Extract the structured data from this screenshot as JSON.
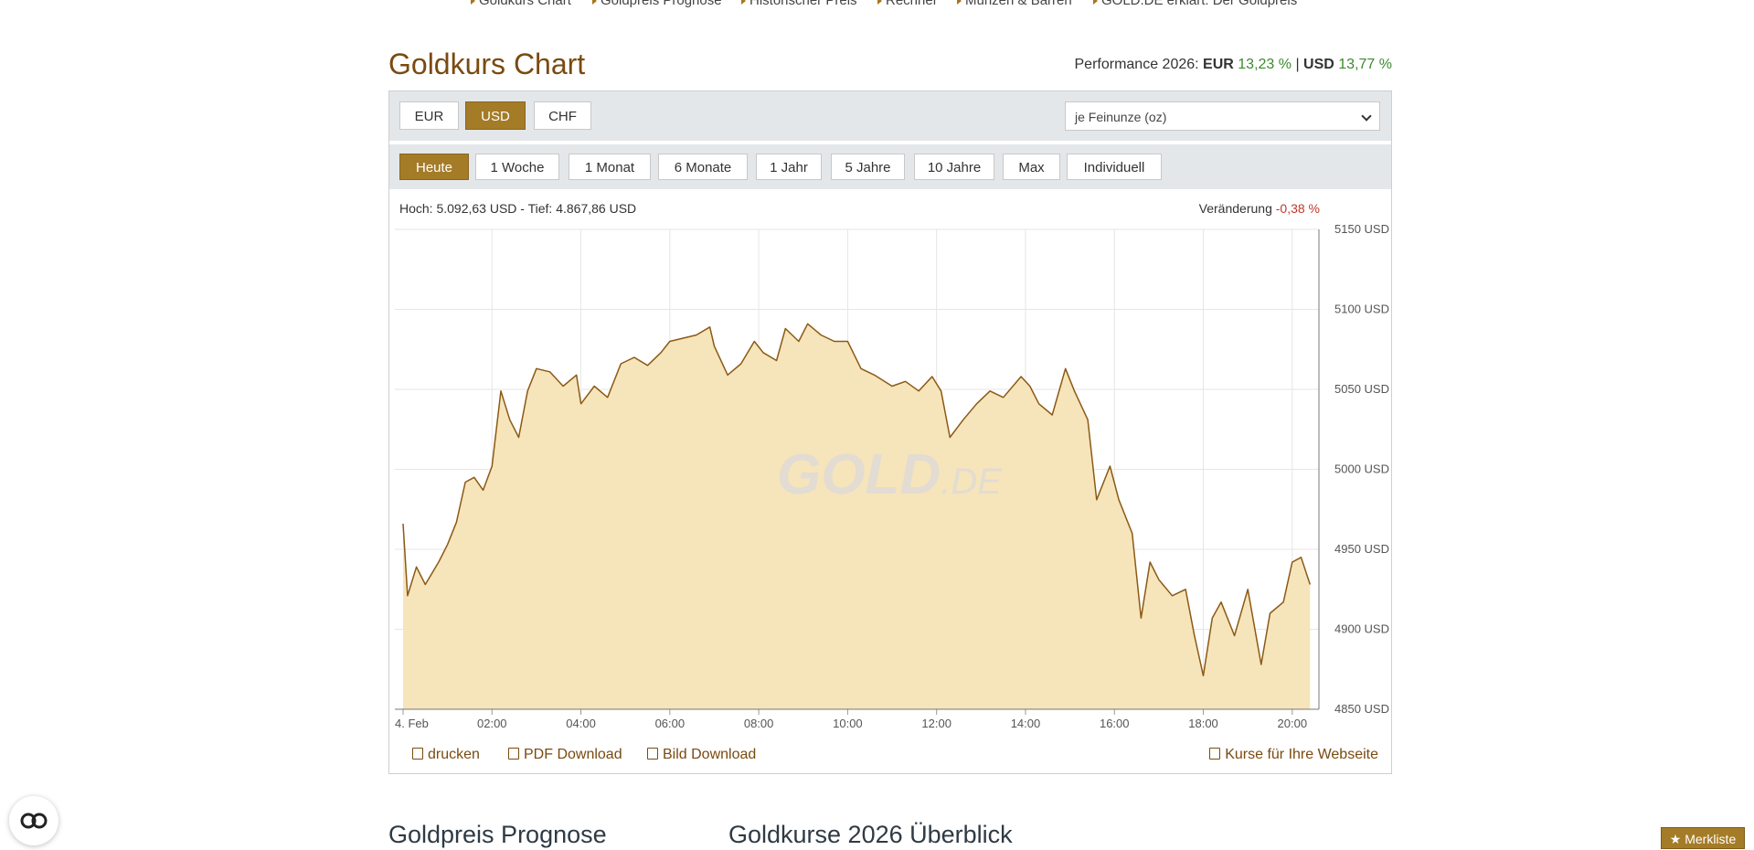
{
  "nav": [
    "Goldkurs Chart",
    "Goldpreis Prognose",
    "Historischer Preis",
    "Rechner",
    "Münzen & Barren",
    "GOLD.DE erklärt: Der Goldpreis"
  ],
  "title": "Goldkurs Chart",
  "performance": {
    "label": "Performance 2026:",
    "items": [
      {
        "currency": "EUR",
        "value": "13,23 %"
      },
      {
        "currency": "USD",
        "value": "13,77 %"
      }
    ],
    "separator": "|"
  },
  "currencies": [
    "EUR",
    "USD",
    "CHF"
  ],
  "unit_select": "je Feinunze (oz)",
  "periods": [
    "Heute",
    "1 Woche",
    "1 Monat",
    "6 Monate",
    "1 Jahr",
    "5 Jahre",
    "10 Jahre",
    "Max",
    "Individuell"
  ],
  "range_text": "Hoch: 5.092,63 USD - Tief: 4.867,86 USD",
  "change": {
    "label": "Veränderung",
    "value": "-0,38 %"
  },
  "watermark": [
    "GOLD",
    ".DE"
  ],
  "chart_data": {
    "type": "area",
    "color": "#8b5a14",
    "fill": "#f6e4bb",
    "grid": true,
    "xlim": [
      0,
      20.6
    ],
    "xticks": [
      {
        "value": 0,
        "label": "4. Feb"
      },
      {
        "value": 2,
        "label": "02:00"
      },
      {
        "value": 4,
        "label": "04:00"
      },
      {
        "value": 6,
        "label": "06:00"
      },
      {
        "value": 8,
        "label": "08:00"
      },
      {
        "value": 10,
        "label": "10:00"
      },
      {
        "value": 12,
        "label": "12:00"
      },
      {
        "value": 14,
        "label": "14:00"
      },
      {
        "value": 16,
        "label": "16:00"
      },
      {
        "value": 18,
        "label": "18:00"
      },
      {
        "value": 20,
        "label": "20:00"
      }
    ],
    "ylim": [
      4850,
      5150
    ],
    "yticks": [
      {
        "value": 4850,
        "label": "4850 USD"
      },
      {
        "value": 4900,
        "label": "4900 USD"
      },
      {
        "value": 4950,
        "label": "4950 USD"
      },
      {
        "value": 5000,
        "label": "5000 USD"
      },
      {
        "value": 5050,
        "label": "5050 USD"
      },
      {
        "value": 5100,
        "label": "5100 USD"
      },
      {
        "value": 5150,
        "label": "5150 USD"
      }
    ],
    "x": [
      0,
      0.1,
      0.3,
      0.5,
      0.8,
      1.0,
      1.2,
      1.4,
      1.6,
      1.8,
      2.0,
      2.2,
      2.4,
      2.6,
      2.8,
      3.0,
      3.3,
      3.6,
      3.9,
      4.0,
      4.3,
      4.6,
      4.9,
      5.2,
      5.5,
      5.8,
      6.0,
      6.3,
      6.6,
      6.9,
      7.0,
      7.3,
      7.6,
      7.9,
      8.1,
      8.4,
      8.6,
      8.9,
      9.1,
      9.4,
      9.7,
      10.0,
      10.3,
      10.6,
      11.0,
      11.3,
      11.6,
      11.9,
      12.1,
      12.3,
      12.6,
      12.9,
      13.2,
      13.5,
      13.9,
      14.1,
      14.3,
      14.6,
      14.9,
      15.1,
      15.4,
      15.6,
      15.9,
      16.1,
      16.4,
      16.6,
      16.8,
      17.0,
      17.3,
      17.6,
      17.8,
      18.0,
      18.2,
      18.4,
      18.7,
      19.0,
      19.3,
      19.5,
      19.8,
      20.0,
      20.2,
      20.4
    ],
    "values": [
      4966,
      4921,
      4939,
      4928,
      4942,
      4953,
      4967,
      4992,
      4995,
      4987,
      5002,
      5049,
      5031,
      5020,
      5049,
      5063,
      5061,
      5052,
      5059,
      5041,
      5052,
      5045,
      5066,
      5070,
      5065,
      5073,
      5080,
      5082,
      5084,
      5089,
      5077,
      5059,
      5066,
      5080,
      5073,
      5068,
      5088,
      5080,
      5091,
      5084,
      5080,
      5080,
      5063,
      5059,
      5052,
      5055,
      5049,
      5058,
      5049,
      5020,
      5031,
      5041,
      5049,
      5045,
      5058,
      5052,
      5041,
      5034,
      5063,
      5049,
      5031,
      4981,
      5002,
      4981,
      4960,
      4907,
      4942,
      4931,
      4921,
      4925,
      4896,
      4871,
      4907,
      4917,
      4896,
      4925,
      4878,
      4910,
      4917,
      4942,
      4945,
      4928
    ]
  },
  "links": [
    "drucken",
    "PDF Download",
    "Bild Download",
    "Kurse für Ihre Webseite"
  ],
  "sections": [
    "Goldpreis Prognose",
    "Goldkurse 2026 Überblick"
  ],
  "merkliste": "Merkliste"
}
